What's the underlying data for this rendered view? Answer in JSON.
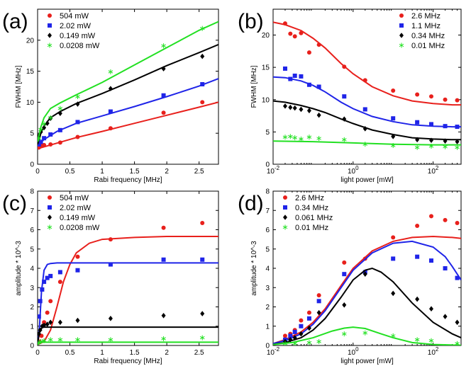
{
  "chart_data": [
    {
      "panel": "(a)",
      "type": "scatter",
      "xlabel": "Rabi frequency [MHz]",
      "ylabel": "FWHM [MHz]",
      "xscale": "linear",
      "xlim": [
        0,
        2.8
      ],
      "ylim": [
        0,
        25
      ],
      "xticks": [
        0,
        0.5,
        1,
        1.5,
        2,
        2.5
      ],
      "xtick_labels": [
        "0",
        "0.5",
        "1",
        "1.5",
        "2",
        "2.5"
      ],
      "yticks": [
        0,
        5,
        10,
        15,
        20
      ],
      "ytick_labels": [
        "0",
        "5",
        "10",
        "15",
        "20"
      ],
      "legend_position": "top-left",
      "series": [
        {
          "name": "504 mW",
          "color": "#e8201c",
          "marker": "circle",
          "x": [
            0.02,
            0.05,
            0.1,
            0.2,
            0.35,
            0.62,
            1.13,
            1.95,
            2.55
          ],
          "y": [
            2.7,
            3.0,
            3.1,
            3.2,
            3.5,
            4.4,
            5.8,
            8.3,
            10.0
          ],
          "fit_x": [
            0,
            0.3,
            0.6,
            1.0,
            1.5,
            2.0,
            2.5,
            2.8
          ],
          "fit_y": [
            2.5,
            3.4,
            4.3,
            5.3,
            6.6,
            7.9,
            9.2,
            10.0
          ]
        },
        {
          "name": "2.02 mW",
          "color": "#1f24e8",
          "marker": "square",
          "x": [
            0.02,
            0.05,
            0.1,
            0.2,
            0.35,
            0.62,
            1.13,
            1.95,
            2.55
          ],
          "y": [
            3.2,
            3.6,
            4.2,
            4.8,
            5.5,
            6.8,
            8.5,
            11.1,
            12.9
          ],
          "fit_x": [
            0,
            0.1,
            0.3,
            0.6,
            1.0,
            1.5,
            2.0,
            2.5,
            2.8
          ],
          "fit_y": [
            3.0,
            4.0,
            5.3,
            6.6,
            7.8,
            9.3,
            10.9,
            12.6,
            13.8
          ]
        },
        {
          "name": "0.149 mW",
          "color": "#000000",
          "marker": "diamond",
          "x": [
            0.02,
            0.05,
            0.1,
            0.15,
            0.2,
            0.35,
            0.62,
            1.13,
            1.95,
            2.55
          ],
          "y": [
            4.6,
            5.2,
            5.9,
            6.6,
            7.4,
            8.2,
            9.7,
            12.2,
            15.4,
            17.4
          ],
          "fit_x": [
            0,
            0.05,
            0.1,
            0.2,
            0.35,
            0.6,
            1.0,
            1.5,
            2.0,
            2.5,
            2.8
          ],
          "fit_y": [
            3.2,
            5.0,
            6.2,
            7.5,
            8.5,
            9.8,
            11.4,
            13.6,
            15.9,
            18.0,
            19.3
          ]
        },
        {
          "name": "0.0208 mW",
          "color": "#22e022",
          "marker": "star",
          "x": [
            0.02,
            0.05,
            0.1,
            0.2,
            0.35,
            0.62,
            1.13,
            1.95,
            2.55
          ],
          "y": [
            4.2,
            5.6,
            6.5,
            7.5,
            9.0,
            10.9,
            14.9,
            19.1,
            21.9
          ],
          "fit_x": [
            0,
            0.05,
            0.1,
            0.2,
            0.35,
            0.6,
            1.0,
            1.5,
            2.0,
            2.5,
            2.8
          ],
          "fit_y": [
            3.6,
            6.0,
            7.5,
            9.0,
            9.9,
            11.2,
            13.2,
            16.0,
            18.8,
            21.6,
            23.0
          ]
        }
      ]
    },
    {
      "panel": "(b)",
      "type": "scatter",
      "xlabel": "light power [mW]",
      "ylabel": "FWHM [MHz]",
      "xscale": "log",
      "xlim": [
        0.01,
        500
      ],
      "ylim": [
        0,
        24
      ],
      "xticks": [
        0.01,
        1,
        100
      ],
      "xtick_labels": [
        "10",
        "10",
        "10"
      ],
      "xtick_exponents": [
        "-2",
        "0",
        "2"
      ],
      "yticks": [
        0,
        5,
        10,
        15,
        20
      ],
      "ytick_labels": [
        "0",
        "5",
        "10",
        "15",
        "20"
      ],
      "legend_position": "top-right",
      "series": [
        {
          "name": "2.6 MHz",
          "color": "#e8201c",
          "marker": "circle",
          "x": [
            0.02,
            0.027,
            0.035,
            0.05,
            0.08,
            0.14,
            0.6,
            2,
            10,
            40,
            90,
            200,
            400
          ],
          "y": [
            21.8,
            20.2,
            19.8,
            20.3,
            17.3,
            18.5,
            15.1,
            13.0,
            11.4,
            10.8,
            10.5,
            10.0,
            9.9
          ],
          "fit_x": [
            0.01,
            0.02,
            0.05,
            0.1,
            0.2,
            0.5,
            1,
            3,
            10,
            30,
            100,
            300,
            500
          ],
          "fit_y": [
            22.0,
            21.6,
            20.7,
            19.5,
            18.0,
            15.6,
            14.0,
            12.0,
            10.6,
            9.8,
            9.4,
            9.2,
            9.2
          ]
        },
        {
          "name": "1.1 MHz",
          "color": "#1f24e8",
          "marker": "square",
          "x": [
            0.02,
            0.027,
            0.035,
            0.05,
            0.08,
            0.14,
            0.6,
            2,
            10,
            40,
            90,
            200,
            400
          ],
          "y": [
            14.8,
            13.2,
            13.7,
            13.6,
            12.3,
            12.0,
            10.5,
            8.5,
            7.1,
            6.5,
            6.2,
            5.9,
            5.8
          ],
          "fit_x": [
            0.01,
            0.02,
            0.05,
            0.1,
            0.2,
            0.5,
            1,
            3,
            10,
            30,
            100,
            300,
            500
          ],
          "fit_y": [
            13.5,
            13.4,
            12.9,
            12.2,
            11.2,
            9.6,
            8.6,
            7.4,
            6.6,
            6.1,
            5.9,
            5.8,
            5.8
          ]
        },
        {
          "name": "0.34 MHz",
          "color": "#000000",
          "marker": "diamond",
          "x": [
            0.02,
            0.027,
            0.035,
            0.05,
            0.08,
            0.14,
            0.6,
            2,
            10,
            40,
            90,
            200,
            400
          ],
          "y": [
            9.0,
            8.8,
            8.7,
            8.5,
            8.3,
            7.6,
            7.0,
            5.5,
            4.3,
            3.8,
            3.7,
            3.6,
            3.5
          ],
          "fit_x": [
            0.01,
            0.02,
            0.05,
            0.1,
            0.2,
            0.5,
            1,
            3,
            10,
            30,
            100,
            300,
            500
          ],
          "fit_y": [
            9.8,
            9.6,
            9.1,
            8.6,
            8.0,
            7.0,
            6.3,
            5.3,
            4.6,
            4.1,
            3.9,
            3.8,
            3.8
          ]
        },
        {
          "name": "0.01 MHz",
          "color": "#22e022",
          "marker": "star",
          "x": [
            0.02,
            0.027,
            0.035,
            0.05,
            0.08,
            0.14,
            0.6,
            2,
            10,
            40,
            90,
            200,
            400
          ],
          "y": [
            4.2,
            4.3,
            4.1,
            3.9,
            4.2,
            4.0,
            3.8,
            3.1,
            2.9,
            2.6,
            2.8,
            2.7,
            2.6
          ],
          "fit_x": [
            0.01,
            0.1,
            1,
            10,
            100,
            500
          ],
          "fit_y": [
            3.6,
            3.5,
            3.3,
            3.1,
            3.0,
            3.0
          ]
        }
      ]
    },
    {
      "panel": "(c)",
      "type": "scatter",
      "xlabel": "Rabi frequency [MHz]",
      "ylabel": "amplitude * 10^-3",
      "xscale": "linear",
      "xlim": [
        0,
        2.8
      ],
      "ylim": [
        0,
        8
      ],
      "xticks": [
        0,
        0.5,
        1,
        1.5,
        2,
        2.5
      ],
      "xtick_labels": [
        "0",
        "0.5",
        "1",
        "1.5",
        "2",
        "2.5"
      ],
      "yticks": [
        0,
        1,
        2,
        3,
        4,
        5,
        6,
        7,
        8
      ],
      "ytick_labels": [
        "0",
        "1",
        "2",
        "3",
        "4",
        "5",
        "6",
        "7",
        "8"
      ],
      "legend_position": "top-left",
      "series": [
        {
          "name": "504 mW",
          "color": "#e8201c",
          "marker": "circle",
          "x": [
            0.03,
            0.06,
            0.1,
            0.15,
            0.2,
            0.35,
            0.62,
            1.13,
            1.95,
            2.55
          ],
          "y": [
            0.2,
            0.5,
            1.2,
            1.7,
            2.3,
            3.3,
            4.6,
            5.5,
            6.1,
            6.35
          ],
          "fit_x": [
            0,
            0.1,
            0.2,
            0.3,
            0.4,
            0.5,
            0.6,
            0.8,
            1.0,
            1.5,
            2.0,
            2.8
          ],
          "fit_y": [
            0.05,
            0.2,
            0.8,
            2.0,
            3.3,
            4.2,
            4.8,
            5.3,
            5.5,
            5.6,
            5.65,
            5.65
          ]
        },
        {
          "name": "2.02 mW",
          "color": "#1f24e8",
          "marker": "square",
          "x": [
            0.02,
            0.04,
            0.07,
            0.1,
            0.15,
            0.2,
            0.35,
            0.62,
            1.13,
            1.95,
            2.55
          ],
          "y": [
            1.5,
            2.3,
            2.9,
            3.3,
            3.5,
            3.6,
            3.8,
            3.9,
            4.2,
            4.45,
            4.45
          ],
          "fit_x": [
            0,
            0.03,
            0.06,
            0.1,
            0.15,
            0.2,
            0.3,
            0.5,
            1.0,
            2.8
          ],
          "fit_y": [
            0.1,
            1.0,
            2.8,
            3.9,
            4.2,
            4.25,
            4.28,
            4.28,
            4.28,
            4.28
          ]
        },
        {
          "name": "0.149 mW",
          "color": "#000000",
          "marker": "diamond",
          "x": [
            0.02,
            0.04,
            0.07,
            0.1,
            0.15,
            0.2,
            0.35,
            0.62,
            1.13,
            1.95,
            2.55
          ],
          "y": [
            0.6,
            0.8,
            1.0,
            1.05,
            1.1,
            1.2,
            1.2,
            1.3,
            1.4,
            1.55,
            1.65
          ],
          "fit_x": [
            0,
            0.02,
            0.04,
            0.07,
            0.1,
            0.2,
            2.8
          ],
          "fit_y": [
            0.1,
            0.5,
            0.8,
            0.92,
            0.95,
            0.95,
            0.95
          ]
        },
        {
          "name": "0.0208 mW",
          "color": "#22e022",
          "marker": "star",
          "x": [
            0.02,
            0.05,
            0.1,
            0.2,
            0.35,
            0.62,
            1.13,
            1.95,
            2.55
          ],
          "y": [
            0.15,
            0.2,
            0.25,
            0.3,
            0.3,
            0.3,
            0.3,
            0.35,
            0.4
          ],
          "fit_x": [
            0,
            0.03,
            0.06,
            0.1,
            2.8
          ],
          "fit_y": [
            0.05,
            0.15,
            0.17,
            0.17,
            0.17
          ]
        }
      ]
    },
    {
      "panel": "(d)",
      "type": "scatter",
      "xlabel": "light power [mW]",
      "ylabel": "amplitude * 10^-3",
      "xscale": "log",
      "xlim": [
        0.01,
        500
      ],
      "ylim": [
        0,
        8
      ],
      "xticks": [
        0.01,
        1,
        100
      ],
      "xtick_labels": [
        "10",
        "10",
        "10"
      ],
      "xtick_exponents": [
        "-2",
        "0",
        "2"
      ],
      "yticks": [
        0,
        1,
        2,
        3,
        4,
        5,
        6,
        7,
        8
      ],
      "ytick_labels": [
        "0",
        "1",
        "2",
        "3",
        "4",
        "5",
        "6",
        "7",
        "8"
      ],
      "legend_position": "top-left",
      "series": [
        {
          "name": "2.6 MHz",
          "color": "#e8201c",
          "marker": "circle",
          "x": [
            0.02,
            0.027,
            0.035,
            0.05,
            0.08,
            0.14,
            0.6,
            2,
            10,
            40,
            90,
            200,
            400
          ],
          "y": [
            0.5,
            0.6,
            0.8,
            1.3,
            1.7,
            2.6,
            4.3,
            4.5,
            5.6,
            6.2,
            6.7,
            6.5,
            6.35
          ],
          "fit_x": [
            0.01,
            0.02,
            0.05,
            0.1,
            0.2,
            0.5,
            1,
            3,
            10,
            30,
            100,
            300,
            500
          ],
          "fit_y": [
            0.1,
            0.3,
            0.7,
            1.2,
            1.9,
            3.1,
            4.0,
            4.9,
            5.4,
            5.6,
            5.65,
            5.6,
            5.55
          ]
        },
        {
          "name": "0.34 MHz",
          "color": "#1f24e8",
          "marker": "square",
          "x": [
            0.02,
            0.027,
            0.035,
            0.05,
            0.08,
            0.14,
            0.6,
            2,
            10,
            40,
            90,
            200,
            400
          ],
          "y": [
            0.3,
            0.5,
            0.7,
            1.0,
            1.4,
            2.3,
            3.7,
            3.8,
            4.5,
            4.6,
            4.4,
            4.0,
            3.5
          ],
          "fit_x": [
            0.01,
            0.02,
            0.05,
            0.1,
            0.2,
            0.5,
            1,
            3,
            10,
            30,
            100,
            200,
            300,
            500
          ],
          "fit_y": [
            0.1,
            0.25,
            0.6,
            1.1,
            1.8,
            3.0,
            3.9,
            4.8,
            5.3,
            5.4,
            5.1,
            4.6,
            4.1,
            3.4
          ]
        },
        {
          "name": "0.061 MHz",
          "color": "#000000",
          "marker": "diamond",
          "x": [
            0.02,
            0.027,
            0.035,
            0.05,
            0.08,
            0.14,
            0.6,
            2,
            10,
            40,
            90,
            200,
            400
          ],
          "y": [
            0.2,
            0.3,
            0.4,
            0.6,
            0.9,
            1.7,
            2.1,
            3.7,
            2.7,
            2.4,
            1.9,
            1.5,
            1.2
          ],
          "fit_x": [
            0.01,
            0.02,
            0.05,
            0.1,
            0.2,
            0.5,
            1,
            2,
            3,
            5,
            10,
            30,
            100,
            300,
            500
          ],
          "fit_y": [
            0.05,
            0.15,
            0.4,
            0.8,
            1.4,
            2.5,
            3.4,
            3.9,
            4.0,
            3.8,
            3.3,
            2.2,
            1.2,
            0.6,
            0.4
          ]
        },
        {
          "name": "0.01 MHz",
          "color": "#22e022",
          "marker": "star",
          "x": [
            0.02,
            0.035,
            0.08,
            0.14,
            0.6,
            2,
            10,
            40,
            90,
            400
          ],
          "y": [
            0.1,
            0.1,
            0.15,
            0.2,
            0.6,
            0.65,
            0.5,
            0.3,
            0.25,
            0.1
          ],
          "fit_x": [
            0.01,
            0.03,
            0.1,
            0.3,
            0.6,
            1,
            2,
            5,
            10,
            30,
            100,
            500
          ],
          "fit_y": [
            0.05,
            0.15,
            0.4,
            0.75,
            0.9,
            0.95,
            0.88,
            0.6,
            0.4,
            0.15,
            0.05,
            0.01
          ]
        }
      ]
    }
  ]
}
